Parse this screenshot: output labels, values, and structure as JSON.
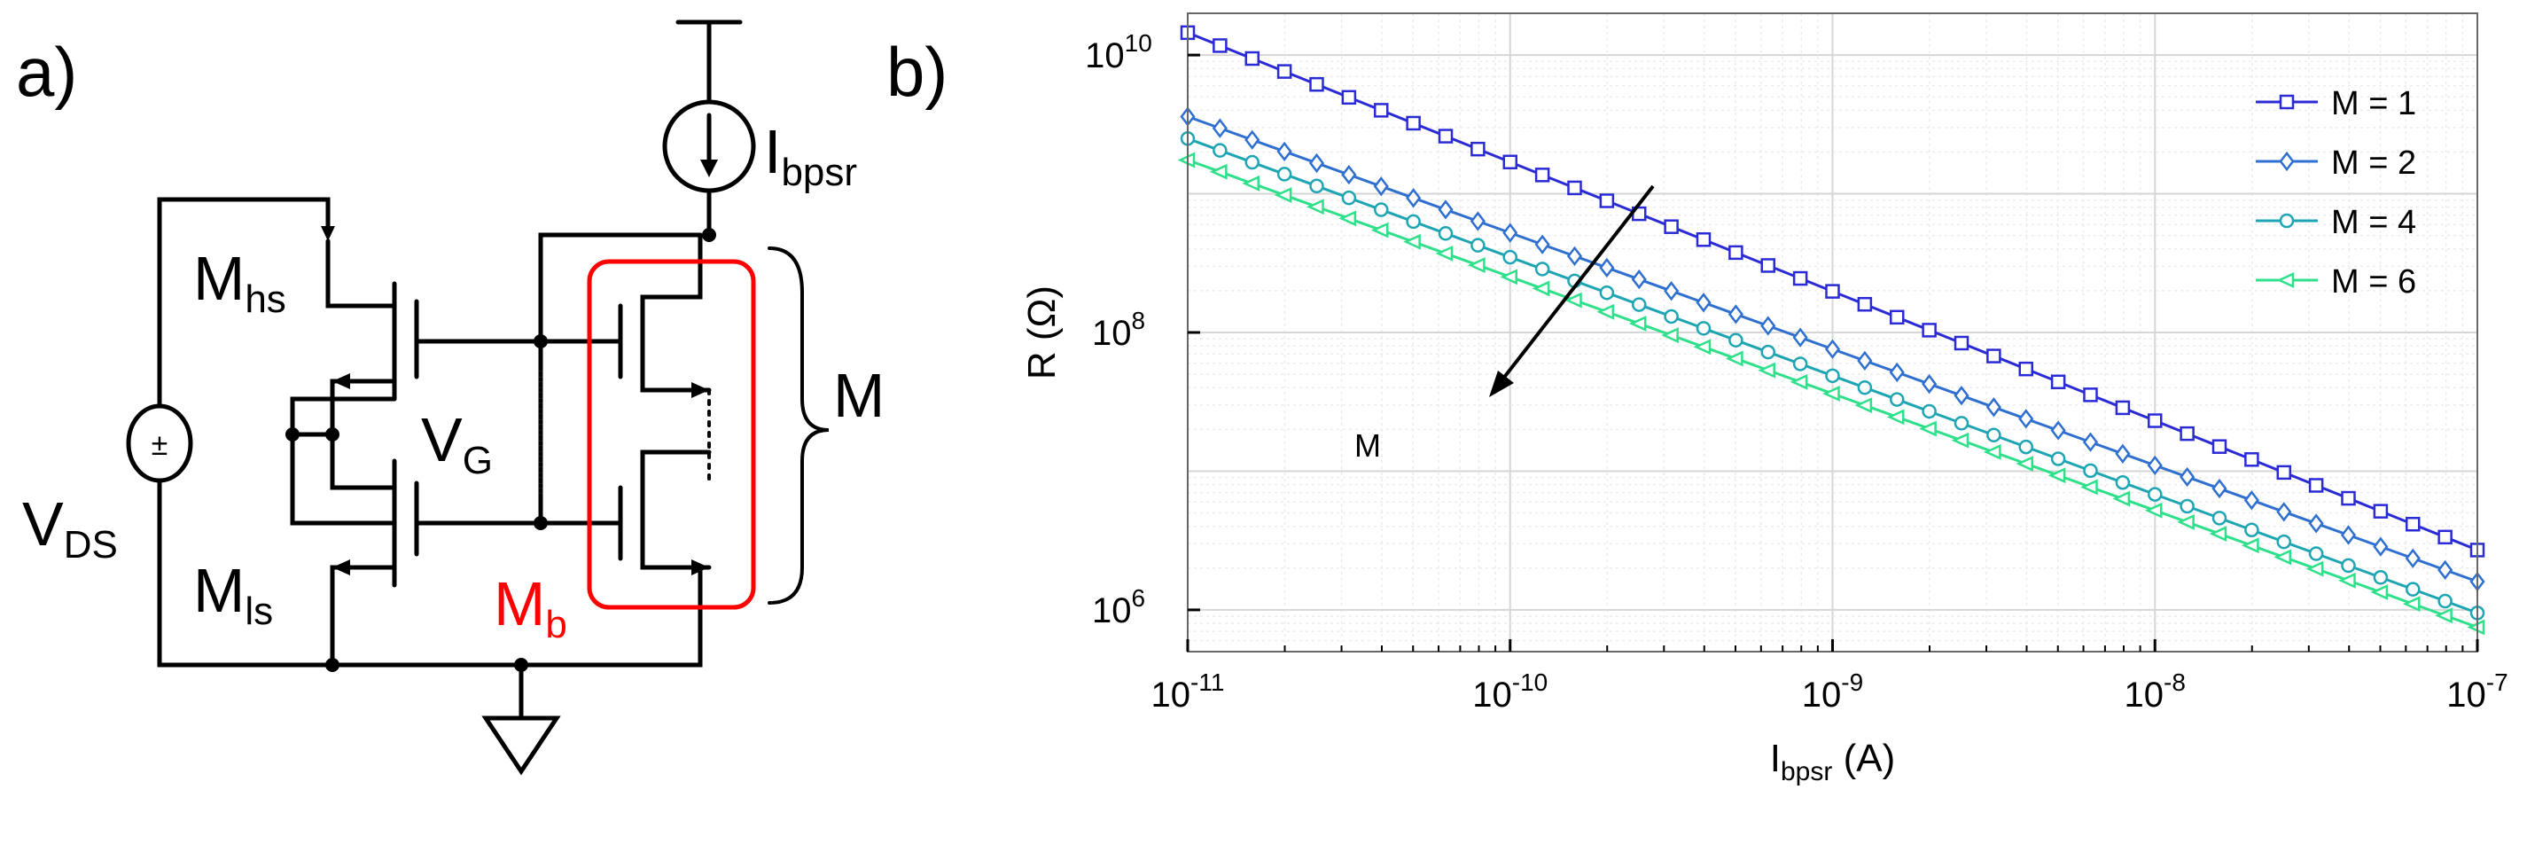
{
  "panel_a": {
    "label": "a)",
    "mhs_main": "M",
    "mhs_sub": "hs",
    "mls_main": "M",
    "mls_sub": "ls",
    "vg_main": "V",
    "vg_sub": "G",
    "vds_main": "V",
    "vds_sub": "DS",
    "mb_main": "M",
    "mb_sub": "b",
    "ibpsr_main": "I",
    "ibpsr_sub": "bpsr",
    "m_label": "M",
    "source_symbol": "±",
    "highlight_color": "#ff0000"
  },
  "chart_data": {
    "panel_label": "b)",
    "type": "line",
    "xscale": "log",
    "yscale": "log",
    "xlim": [
      1e-11,
      1e-07
    ],
    "ylim": [
      500000,
      20000000000
    ],
    "x_ticks": [
      {
        "value": 1e-11,
        "base": "10",
        "exp": "-11"
      },
      {
        "value": 1e-10,
        "base": "10",
        "exp": "-10"
      },
      {
        "value": 1e-09,
        "base": "10",
        "exp": "-9"
      },
      {
        "value": 1e-08,
        "base": "10",
        "exp": "-8"
      },
      {
        "value": 1e-07,
        "base": "10",
        "exp": "-7"
      }
    ],
    "y_ticks": [
      {
        "value": 1000000,
        "base": "10",
        "exp": "6"
      },
      {
        "value": 100000000,
        "base": "10",
        "exp": "8"
      },
      {
        "value": 10000000000,
        "base": "10",
        "exp": "10"
      }
    ],
    "xlabel_main": "I",
    "xlabel_sub": "bpsr",
    "xlabel_unit": " (A)",
    "ylabel": "R (Ω)",
    "grid": true,
    "legend_position": "top-right",
    "annotation_text": "M",
    "series": [
      {
        "name": "M = 1",
        "color": "#2b2bd6",
        "marker": "square",
        "r_at_1e-11": 14500000000,
        "r_at_1e-7": 2700000
      },
      {
        "name": "M = 2",
        "color": "#2f6fd0",
        "marker": "diamond",
        "r_at_1e-11": 3600000000,
        "r_at_1e-7": 1600000
      },
      {
        "name": "M = 4",
        "color": "#1ea5b3",
        "marker": "circle",
        "r_at_1e-11": 2500000000,
        "r_at_1e-7": 950000
      },
      {
        "name": "M = 6",
        "color": "#2fe08a",
        "marker": "triangle",
        "r_at_1e-11": 1750000000,
        "r_at_1e-7": 750000
      }
    ],
    "points_per_series": 41
  }
}
